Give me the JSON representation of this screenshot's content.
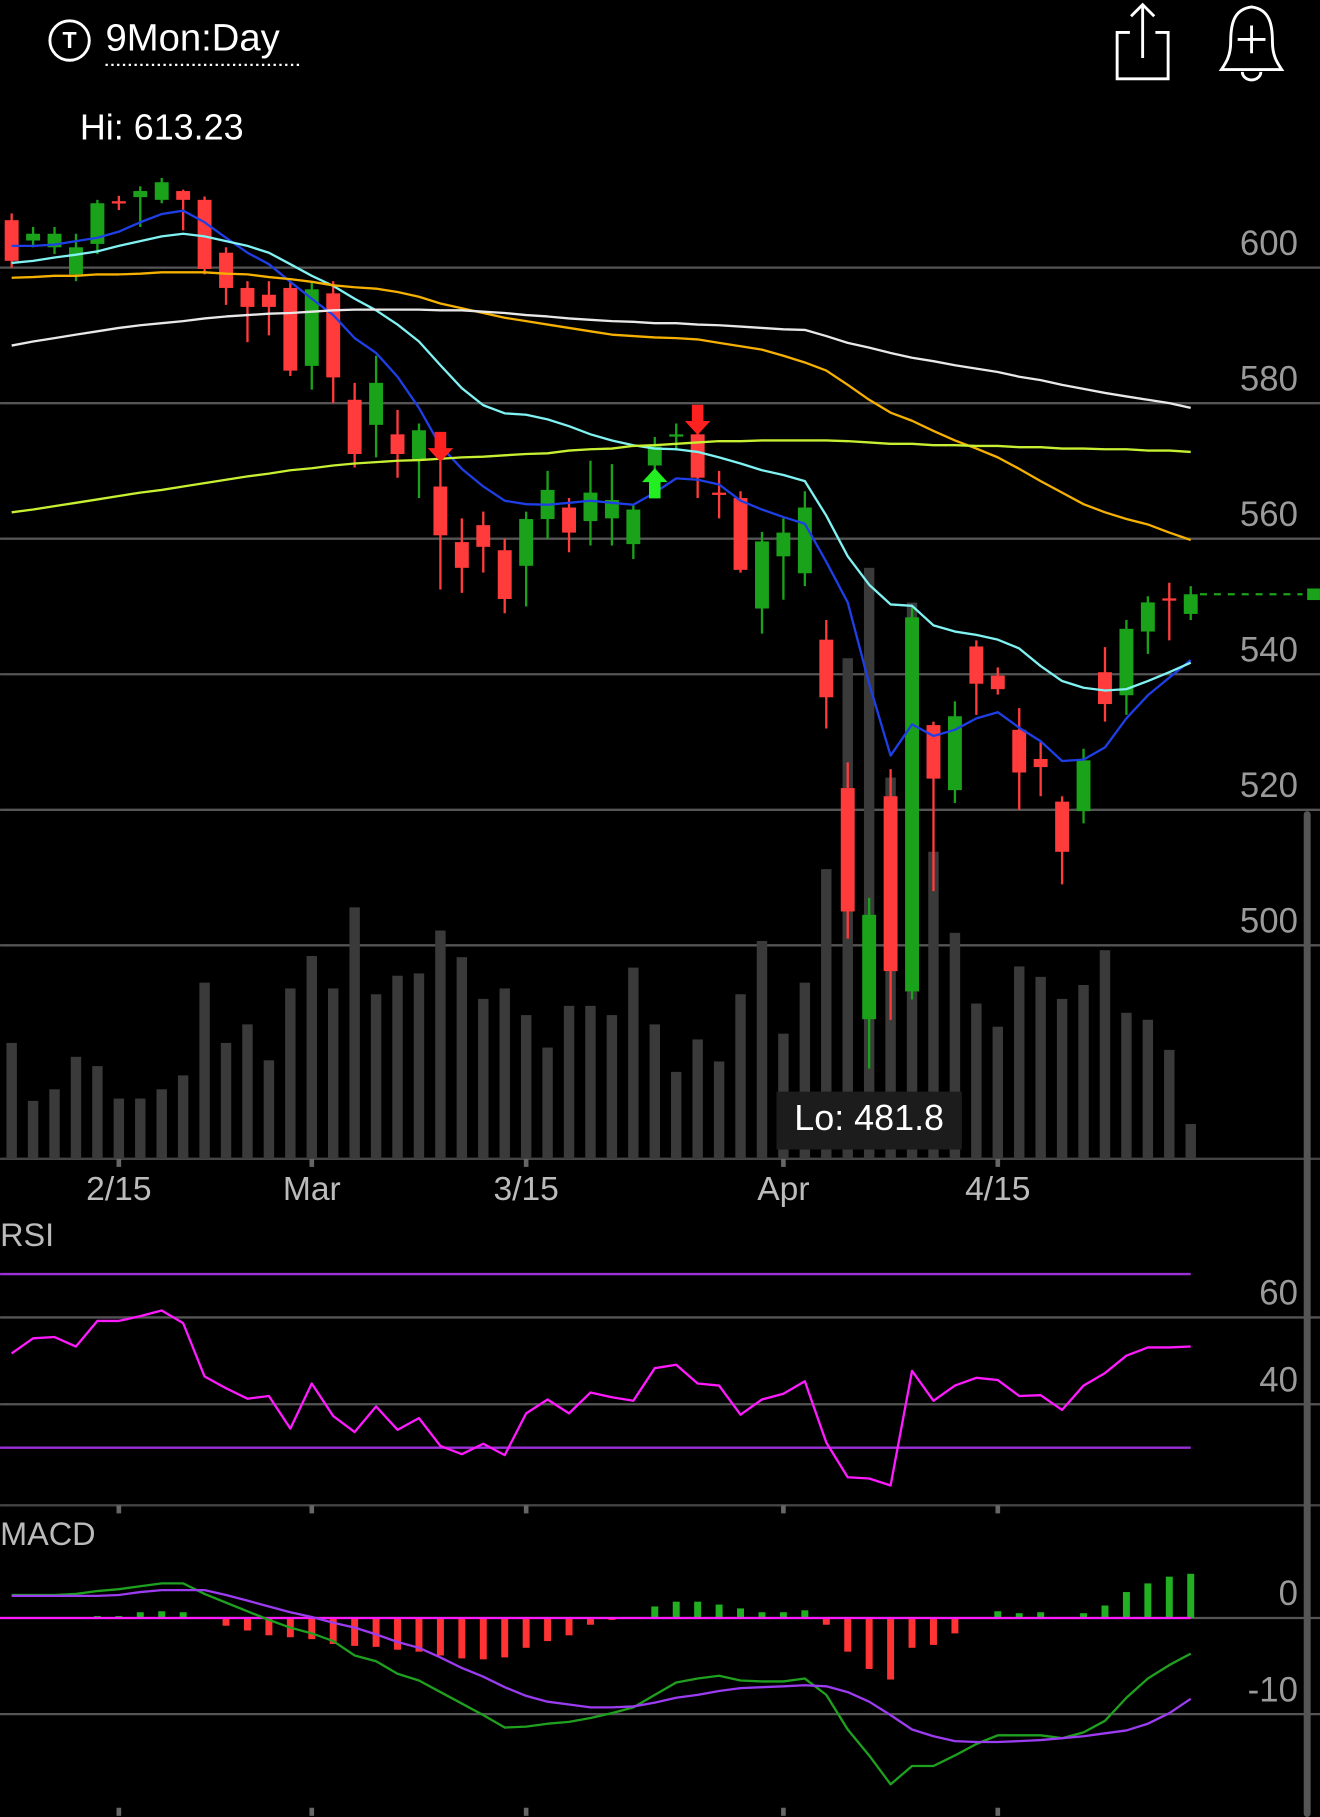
{
  "header": {
    "badge": "T",
    "title": "9Mon:Day"
  },
  "chart_data": [
    {
      "type": "candlestick",
      "categories": [
        null,
        null,
        null,
        null,
        null,
        "2/15",
        null,
        null,
        null,
        null,
        null,
        null,
        null,
        null,
        "Mar",
        null,
        null,
        null,
        null,
        null,
        null,
        null,
        null,
        null,
        "3/15",
        null,
        null,
        null,
        null,
        null,
        null,
        null,
        null,
        null,
        null,
        null,
        "Apr",
        null,
        null,
        null,
        null,
        null,
        null,
        null,
        null,
        null,
        "4/15",
        null,
        null,
        null,
        null,
        null,
        null,
        null,
        null,
        null
      ],
      "open": [
        607,
        604,
        603,
        599,
        603.5,
        609.8,
        610.4,
        610,
        611.3,
        610,
        602.2,
        597,
        596,
        597,
        585.5,
        596.2,
        580.5,
        576.8,
        575.4,
        571.5,
        567.7,
        559.5,
        562,
        558.3,
        556,
        562.9,
        564.6,
        562.6,
        563,
        559.2,
        570.8,
        575.2,
        575.4,
        566.8,
        566,
        549.7,
        557.4,
        554.9,
        545.1,
        523.2,
        489.1,
        522,
        493.2,
        532.5,
        522.9,
        544.1,
        539.8,
        531.8,
        527.5,
        521.2,
        519.8,
        540.3,
        536.9,
        546.3,
        551.2,
        548.9
      ],
      "high": [
        608,
        606,
        606,
        605,
        610,
        610.6,
        612,
        613.23,
        611.5,
        610.5,
        603,
        598,
        598,
        598,
        598,
        598,
        583,
        587,
        579,
        577,
        572,
        563,
        564,
        560,
        564,
        570,
        566,
        571.5,
        571,
        565,
        575,
        577,
        576,
        570,
        567,
        561,
        563,
        567,
        548,
        527,
        507,
        526,
        550,
        533,
        536,
        545,
        541,
        535,
        530,
        522,
        529,
        544,
        548,
        551.5,
        553.5,
        553
      ],
      "low": [
        600,
        603,
        602,
        598,
        602,
        608.5,
        606,
        609.5,
        605.5,
        599,
        594.5,
        589,
        590,
        584,
        582,
        580,
        570.5,
        572,
        569,
        566,
        552.5,
        552,
        555,
        549,
        550,
        560,
        558,
        559,
        559,
        557,
        568,
        573,
        566,
        563,
        555,
        546,
        551,
        553,
        532,
        501,
        481.8,
        489,
        492,
        508,
        521,
        534,
        537,
        520,
        522,
        509,
        518,
        533,
        534,
        543,
        545,
        548
      ],
      "close": [
        601,
        605,
        605,
        603,
        609.5,
        609.5,
        611.3,
        612.6,
        610,
        599.8,
        597,
        594.2,
        594.2,
        584.8,
        596.8,
        583.8,
        572.5,
        583,
        572.5,
        576,
        560.5,
        555.7,
        558.8,
        551.1,
        562.9,
        567.2,
        560.9,
        566.8,
        565.7,
        564.3,
        573.6,
        575.4,
        569,
        566.6,
        555.4,
        559.6,
        560.9,
        564.6,
        536.6,
        505,
        504.5,
        496.2,
        548.4,
        524.6,
        533.8,
        538.6,
        537.8,
        525.5,
        526.3,
        513.8,
        527.3,
        535.6,
        546.7,
        550.6,
        551,
        551.8
      ],
      "volume": [
        100,
        50,
        60,
        88,
        80,
        52,
        52,
        60,
        72,
        152,
        100,
        116,
        85,
        147,
        175,
        147,
        217,
        142,
        158,
        160,
        197,
        174,
        138,
        147,
        124,
        96,
        132,
        132,
        124,
        165,
        116,
        75,
        103,
        84,
        142,
        188,
        108,
        152,
        250,
        432,
        510,
        329,
        480,
        265,
        195,
        134,
        114,
        166,
        157,
        138,
        150,
        180,
        126,
        120,
        94,
        30
      ],
      "series": [
        {
          "color": "#1f3fe6",
          "values": [
            603.2,
            603.2,
            603.4,
            603.9,
            604.4,
            605.3,
            606.7,
            607.9,
            608.4,
            606.7,
            604.4,
            602.2,
            600.5,
            597.9,
            595.4,
            593.0,
            589.6,
            587.4,
            583.9,
            579.3,
            573.7,
            570.3,
            567.7,
            565.6,
            565.1,
            565.0,
            565.3,
            565.6,
            565.3,
            565.0,
            566.8,
            568.9,
            568.7,
            568.0,
            565.6,
            564.3,
            563.2,
            562.2,
            556.6,
            550.6,
            538.6,
            528.0,
            532.6,
            530.9,
            531.8,
            533.5,
            534.4,
            532.1,
            530.1,
            527.2,
            527.4,
            529.2,
            533.5,
            536.9,
            539.5,
            542.1
          ]
        },
        {
          "color": "#80f2f2",
          "values": [
            600.7,
            601.0,
            601.5,
            601.9,
            602.4,
            603.2,
            603.9,
            604.6,
            605.0,
            604.6,
            603.9,
            603.2,
            602.2,
            600.5,
            598.8,
            597.3,
            595.4,
            593.7,
            591.6,
            589.1,
            585.6,
            582.2,
            579.7,
            578.5,
            578.3,
            577.6,
            576.6,
            575.4,
            574.5,
            573.8,
            573.3,
            573.2,
            572.8,
            572.0,
            571.1,
            570.1,
            569.4,
            568.5,
            563.4,
            557.4,
            553.2,
            550.3,
            550.1,
            547.2,
            546.3,
            545.8,
            545.1,
            543.8,
            541.2,
            539.0,
            538.0,
            537.6,
            537.8,
            539.0,
            540.3,
            541.7
          ]
        },
        {
          "color": "#f5b000",
          "values": [
            598.5,
            598.6,
            598.8,
            598.8,
            599.0,
            599.0,
            599.1,
            599.3,
            599.3,
            599.3,
            599.1,
            599.0,
            598.6,
            598.3,
            597.9,
            597.4,
            597.1,
            596.9,
            596.4,
            595.7,
            594.7,
            594.0,
            593.3,
            592.6,
            592.1,
            591.6,
            591.1,
            590.6,
            590.1,
            589.9,
            589.7,
            589.6,
            589.4,
            588.9,
            588.4,
            587.9,
            587.0,
            586.0,
            584.8,
            582.7,
            580.5,
            578.6,
            577.4,
            575.9,
            574.5,
            573.3,
            572.0,
            570.3,
            568.5,
            566.8,
            565.1,
            563.9,
            562.9,
            562.1,
            560.9,
            559.8
          ]
        },
        {
          "color": "#e8e8e8",
          "values": [
            588.5,
            589.1,
            589.6,
            590.1,
            590.6,
            591.1,
            591.5,
            591.8,
            592.1,
            592.5,
            592.8,
            593.0,
            593.2,
            593.3,
            593.5,
            593.7,
            593.8,
            593.8,
            593.8,
            593.8,
            593.7,
            593.7,
            593.5,
            593.3,
            593.0,
            592.8,
            592.5,
            592.3,
            592.1,
            592.0,
            591.8,
            591.8,
            591.6,
            591.5,
            591.3,
            591.1,
            590.9,
            590.8,
            589.9,
            588.9,
            588.2,
            587.4,
            586.7,
            586.2,
            585.6,
            585.1,
            584.6,
            583.9,
            583.4,
            582.7,
            582.1,
            581.5,
            581.0,
            580.5,
            580.0,
            579.3
          ]
        },
        {
          "color": "#c8f032",
          "values": [
            563.9,
            564.3,
            564.8,
            565.3,
            565.8,
            566.3,
            566.8,
            567.2,
            567.7,
            568.2,
            568.7,
            569.2,
            569.6,
            570.1,
            570.4,
            570.8,
            571.1,
            571.3,
            571.5,
            571.6,
            571.8,
            572.0,
            572.1,
            572.3,
            572.5,
            572.6,
            573.0,
            573.2,
            573.3,
            573.7,
            573.8,
            574.0,
            574.2,
            574.4,
            574.4,
            574.5,
            574.5,
            574.5,
            574.5,
            574.4,
            574.2,
            574.0,
            574.0,
            573.8,
            573.8,
            573.7,
            573.7,
            573.5,
            573.5,
            573.3,
            573.3,
            573.2,
            573.2,
            573.0,
            573.0,
            572.8
          ]
        }
      ],
      "up_color": "#1aa31a",
      "down_color": "#ff3b3b",
      "volume_color": "#3a3a3a",
      "sell_signals": [
        20,
        32
      ],
      "buy_signals": [
        30
      ],
      "sell_color": "#ff2020",
      "buy_color": "#22ee22",
      "high_label": "Hi: 613.23",
      "low_label": "Lo: 481.8",
      "ylim": [
        468.5,
        624.1
      ],
      "yticks": [
        500,
        520,
        540,
        560,
        580,
        600
      ],
      "grid": true,
      "last_price_line": true
    },
    {
      "type": "line",
      "title": "RSI",
      "color": "#ff1aff",
      "band_color": "#9b30d9",
      "bands": [
        30,
        70
      ],
      "values": [
        51.7,
        55.2,
        55.5,
        53.3,
        59.2,
        59.2,
        60.3,
        61.6,
        58.7,
        46.4,
        43.7,
        41.3,
        41.9,
        34.4,
        44.8,
        37.3,
        33.6,
        39.5,
        34.1,
        36.8,
        30.4,
        28.5,
        30.9,
        28.3,
        37.9,
        41.1,
        37.9,
        42.7,
        41.6,
        40.8,
        48.3,
        49.1,
        44.8,
        44.3,
        37.6,
        41.1,
        42.4,
        45.3,
        31.2,
        23.2,
        22.9,
        21.3,
        47.7,
        40.8,
        44.3,
        46.1,
        45.6,
        41.9,
        42.1,
        38.7,
        44.3,
        47.2,
        51.2,
        53.1,
        53.1,
        53.3
      ],
      "ylim": [
        17,
        83.2
      ],
      "yticks": [
        40,
        60
      ],
      "grid": true
    },
    {
      "type": "macd",
      "title": "MACD",
      "series": [
        {
          "color": "#1fa01f",
          "values": [
            2.4,
            2.4,
            2.4,
            2.5,
            2.8,
            3.0,
            3.3,
            3.6,
            3.6,
            2.5,
            1.6,
            0.7,
            -0.2,
            -1.0,
            -1.6,
            -2.4,
            -3.9,
            -4.5,
            -5.8,
            -6.5,
            -7.7,
            -8.9,
            -10.1,
            -11.4,
            -11.3,
            -11.0,
            -10.8,
            -10.4,
            -9.9,
            -9.3,
            -8.0,
            -6.7,
            -6.3,
            -6.0,
            -6.5,
            -6.6,
            -6.6,
            -6.3,
            -8.0,
            -11.6,
            -14.3,
            -17.3,
            -15.4,
            -15.4,
            -14.3,
            -13.1,
            -12.2,
            -12.2,
            -12.2,
            -12.5,
            -11.9,
            -10.7,
            -8.3,
            -6.3,
            -4.9,
            -3.7
          ]
        },
        {
          "color": "#9b3cf0",
          "values": [
            2.3,
            2.3,
            2.3,
            2.3,
            2.3,
            2.4,
            2.7,
            2.9,
            2.9,
            2.9,
            2.4,
            1.8,
            1.2,
            0.6,
            0.1,
            -0.5,
            -1.0,
            -1.7,
            -2.5,
            -3.1,
            -4.1,
            -5.2,
            -6.1,
            -7.2,
            -8.1,
            -8.7,
            -9.0,
            -9.3,
            -9.3,
            -9.2,
            -8.8,
            -8.3,
            -8.0,
            -7.6,
            -7.3,
            -7.2,
            -7.1,
            -7.0,
            -7.1,
            -7.7,
            -8.7,
            -10.1,
            -11.6,
            -12.3,
            -12.8,
            -12.9,
            -12.9,
            -12.8,
            -12.7,
            -12.5,
            -12.3,
            -12.0,
            -11.7,
            -11.0,
            -9.9,
            -8.4
          ]
        }
      ],
      "histogram": [
        0,
        0,
        0,
        0,
        0.2,
        0.2,
        0.6,
        0.7,
        0.6,
        0,
        -0.8,
        -1.3,
        -1.8,
        -2.0,
        -2.2,
        -2.7,
        -2.9,
        -3.0,
        -3.3,
        -3.5,
        -3.9,
        -4.2,
        -4.3,
        -4.1,
        -3.1,
        -2.4,
        -1.8,
        -0.7,
        -0.2,
        -0.1,
        1.2,
        1.7,
        1.7,
        1.4,
        1.0,
        0.6,
        0.6,
        0.8,
        -0.7,
        -3.5,
        -5.3,
        -6.4,
        -3.1,
        -2.8,
        -1.6,
        -0.1,
        0.7,
        0.5,
        0.6,
        0.1,
        0.5,
        1.3,
        2.7,
        3.6,
        4.3,
        4.6
      ],
      "up_color": "#22b022",
      "down_color": "#ff3333",
      "zero_line_color": "#ff1aff",
      "ylim": [
        -20.7,
        10.4
      ],
      "yticks": [
        -10,
        0
      ],
      "grid": true
    }
  ]
}
